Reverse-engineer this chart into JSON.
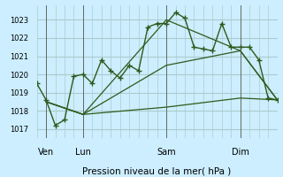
{
  "bg_color": "#cceeff",
  "grid_color": "#aacccc",
  "line_color": "#2d5a1b",
  "title": "Pression niveau de la mer( hPa )",
  "ylabel_ticks": [
    1017,
    1018,
    1019,
    1020,
    1021,
    1022,
    1023
  ],
  "ylim": [
    1016.5,
    1023.8
  ],
  "xlim": [
    0,
    13
  ],
  "day_labels": [
    "Ven",
    "Lun",
    "Sam",
    "Dim"
  ],
  "day_positions": [
    0.5,
    2.5,
    7.0,
    11.0
  ],
  "day_vlines": [
    0.5,
    2.5,
    7.0,
    11.0
  ],
  "series1_x": [
    0,
    0.5,
    1,
    1.5,
    2,
    2.5,
    3,
    3.5,
    4,
    4.5,
    5,
    5.5,
    6,
    6.5,
    7,
    7.5,
    8,
    8.5,
    9,
    9.5,
    10,
    10.5,
    11,
    11.5,
    12,
    12.5,
    13
  ],
  "series1_y": [
    1019.5,
    1018.6,
    1017.2,
    1017.5,
    1019.9,
    1020.0,
    1019.5,
    1020.8,
    1020.2,
    1019.8,
    1020.5,
    1020.2,
    1022.6,
    1022.8,
    1022.8,
    1023.4,
    1023.1,
    1021.5,
    1021.4,
    1021.3,
    1022.8,
    1021.5,
    1021.5,
    1021.5,
    1020.8,
    1018.7,
    1018.6
  ],
  "series2_x": [
    0.5,
    2.5,
    7.0,
    11.0,
    13.0
  ],
  "series2_y": [
    1018.5,
    1017.8,
    1023.0,
    1021.3,
    1018.6
  ],
  "series3_x": [
    0.5,
    2.5,
    7.0,
    11.0,
    13.0
  ],
  "series3_y": [
    1018.5,
    1017.8,
    1018.2,
    1018.7,
    1018.6
  ],
  "series4_x": [
    0.5,
    2.5,
    7.0,
    11.0,
    13.0
  ],
  "series4_y": [
    1018.5,
    1017.8,
    1020.5,
    1021.3,
    1018.6
  ]
}
